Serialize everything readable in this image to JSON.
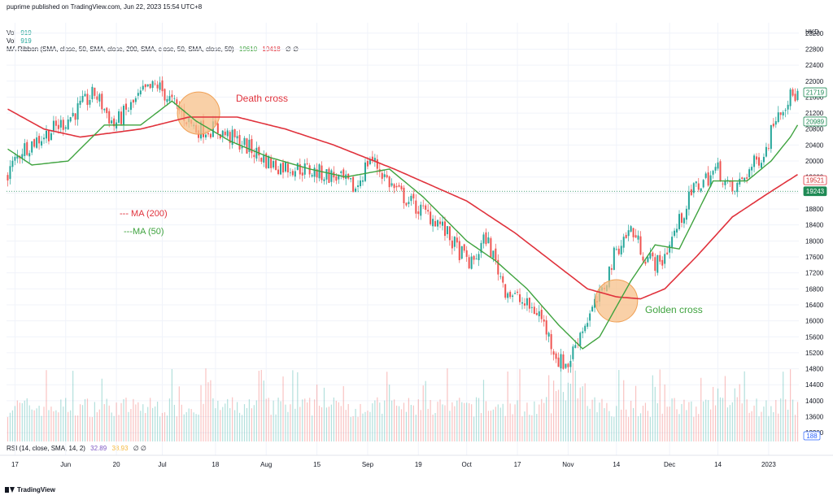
{
  "header": {
    "publisher": "puprime published on TradingView.com, Jun 22, 2023 15:54 UTC+8",
    "vol1_label": "Vol",
    "vol1_value": "919",
    "vol2_label": "Vol",
    "vol2_value": "919",
    "ribbon_label": "MA Ribbon (SMA, close, 50, SMA, close, 200, SMA, close, 50, SMA, close, 50)",
    "ribbon_v1": "19610",
    "ribbon_v2": "19418",
    "ribbon_v3": "∅ ∅"
  },
  "rsi": {
    "label": "RSI (14, close, SMA, 14, 2)",
    "v1": "32.89",
    "v2": "38.93",
    "v3": "∅ ∅"
  },
  "footer": {
    "brand": "TradingView"
  },
  "colors": {
    "ma200": "#e0323c",
    "ma50": "#3fa33f",
    "up": "#26a69a",
    "down": "#ef5350",
    "marker_fill": "#f7c08a",
    "marker_stroke": "#f0a055",
    "grid": "#f0f3fa",
    "price_tag_green": "#1f8a55",
    "price_tag_red_text": "#d32f2f"
  },
  "chart_data": {
    "type": "line",
    "currency": "HKD",
    "y_ticks": [
      23200,
      22800,
      22400,
      22000,
      21600,
      21200,
      20800,
      20400,
      20000,
      19600,
      19200,
      18800,
      18400,
      18000,
      17600,
      17200,
      16800,
      16400,
      16000,
      15600,
      15200,
      14800,
      14400,
      14000,
      13600,
      13200
    ],
    "ylim": [
      12980,
      23420
    ],
    "x_ticks": [
      "17",
      "Jun",
      "20",
      "Jul",
      "18",
      "Aug",
      "15",
      "Sep",
      "19",
      "Oct",
      "17",
      "Nov",
      "14",
      "Dec",
      "14",
      "2023"
    ],
    "x_tick_index": [
      3,
      24,
      45,
      64,
      86,
      107,
      128,
      149,
      170,
      190,
      211,
      232,
      252,
      274,
      294,
      315
    ],
    "n_bars": 328,
    "price_path": [
      [
        0,
        19700
      ],
      [
        6,
        20300
      ],
      [
        14,
        20600
      ],
      [
        24,
        21000
      ],
      [
        36,
        21700
      ],
      [
        44,
        20900
      ],
      [
        56,
        21700
      ],
      [
        62,
        21900
      ],
      [
        66,
        21600
      ],
      [
        78,
        20800
      ],
      [
        86,
        20800
      ],
      [
        98,
        20400
      ],
      [
        110,
        19900
      ],
      [
        122,
        19800
      ],
      [
        136,
        19600
      ],
      [
        144,
        19300
      ],
      [
        150,
        20100
      ],
      [
        160,
        19300
      ],
      [
        170,
        18800
      ],
      [
        178,
        18500
      ],
      [
        186,
        17800
      ],
      [
        192,
        17400
      ],
      [
        198,
        18100
      ],
      [
        206,
        16800
      ],
      [
        214,
        16400
      ],
      [
        220,
        16200
      ],
      [
        228,
        15000
      ],
      [
        232,
        14900
      ],
      [
        236,
        15600
      ],
      [
        246,
        16700
      ],
      [
        252,
        17800
      ],
      [
        258,
        18300
      ],
      [
        264,
        17600
      ],
      [
        270,
        17400
      ],
      [
        276,
        18200
      ],
      [
        284,
        19300
      ],
      [
        294,
        19800
      ],
      [
        300,
        19200
      ],
      [
        306,
        19700
      ],
      [
        314,
        20300
      ],
      [
        318,
        21200
      ],
      [
        324,
        21600
      ],
      [
        328,
        21700
      ]
    ],
    "series": [
      {
        "name": "MA (200)",
        "values": [
          [
            0,
            21300
          ],
          [
            15,
            20800
          ],
          [
            30,
            20600
          ],
          [
            55,
            20800
          ],
          [
            75,
            21100
          ],
          [
            95,
            21100
          ],
          [
            115,
            20800
          ],
          [
            135,
            20400
          ],
          [
            160,
            19800
          ],
          [
            190,
            19000
          ],
          [
            210,
            18200
          ],
          [
            225,
            17500
          ],
          [
            240,
            16800
          ],
          [
            252,
            16600
          ],
          [
            262,
            16550
          ],
          [
            272,
            16800
          ],
          [
            285,
            17600
          ],
          [
            300,
            18600
          ],
          [
            315,
            19200
          ],
          [
            328,
            19700
          ]
        ]
      },
      {
        "name": "MA (50)",
        "values": [
          [
            0,
            20300
          ],
          [
            10,
            19900
          ],
          [
            25,
            20000
          ],
          [
            40,
            20900
          ],
          [
            55,
            20900
          ],
          [
            68,
            21500
          ],
          [
            78,
            21000
          ],
          [
            92,
            20500
          ],
          [
            108,
            20100
          ],
          [
            125,
            19800
          ],
          [
            140,
            19600
          ],
          [
            158,
            19800
          ],
          [
            172,
            19100
          ],
          [
            190,
            18000
          ],
          [
            202,
            17500
          ],
          [
            215,
            16800
          ],
          [
            228,
            15900
          ],
          [
            238,
            15300
          ],
          [
            245,
            15600
          ],
          [
            258,
            17000
          ],
          [
            268,
            17900
          ],
          [
            278,
            17800
          ],
          [
            292,
            19500
          ],
          [
            306,
            19500
          ],
          [
            316,
            20000
          ],
          [
            324,
            20600
          ],
          [
            328,
            21000
          ]
        ]
      }
    ],
    "price_labels": [
      {
        "value": 21719,
        "text": "21719",
        "style": "outline-green"
      },
      {
        "value": 20989,
        "text": "20989",
        "style": "outline-green"
      },
      {
        "value": 19521,
        "text": "19521",
        "style": "outline-red"
      },
      {
        "value": 19243,
        "text": "19243",
        "style": "solid-green"
      }
    ],
    "last_price_line": 19243,
    "annotations": [
      {
        "text": "Death cross",
        "x": 79,
        "y": 21200,
        "color": "#e0323c"
      },
      {
        "text": "Golden cross",
        "x": 252,
        "y": 16500,
        "color": "#3fa33f"
      }
    ],
    "legend": [
      "--- MA (200)",
      "---MA (50)"
    ],
    "rsi_value_label": "188"
  }
}
